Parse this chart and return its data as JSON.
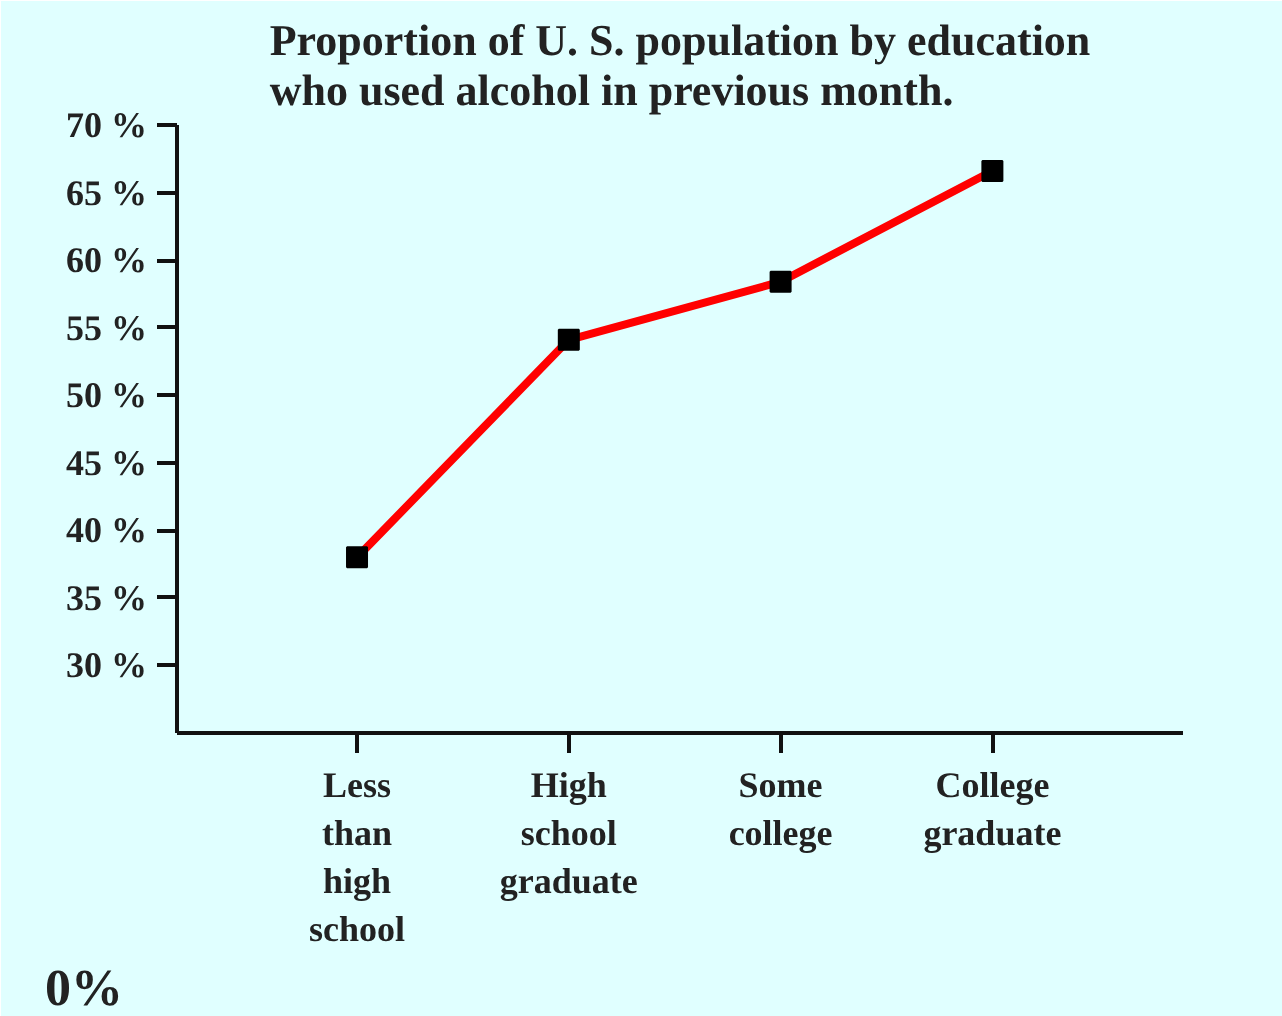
{
  "chart_data": {
    "type": "line",
    "title": "Proportion of U. S. population by education\nwho used alcohol in previous month.",
    "categories": [
      "Less\nthan\nhigh\nschool",
      "High\nschool\ngraduate",
      "Some\ncollege",
      "College\ngraduate"
    ],
    "series": [
      {
        "color": "#ff0000",
        "values": [
          38.0,
          54.1,
          58.4,
          66.6
        ]
      }
    ],
    "marker": "square",
    "line_style": "solid",
    "grid": false,
    "ylim": [
      25,
      70
    ],
    "yticks": [
      {
        "value": 30,
        "label": "30 %"
      },
      {
        "value": 35,
        "label": "35 %"
      },
      {
        "value": 40,
        "label": "40 %"
      },
      {
        "value": 45,
        "label": "45 %"
      },
      {
        "value": 50,
        "label": "50 %"
      },
      {
        "value": 55,
        "label": "55 %"
      },
      {
        "value": 60,
        "label": "60 %"
      },
      {
        "value": 65,
        "label": "65 %"
      },
      {
        "value": 70,
        "label": "70 %"
      }
    ],
    "annotations": [
      "0%"
    ]
  }
}
